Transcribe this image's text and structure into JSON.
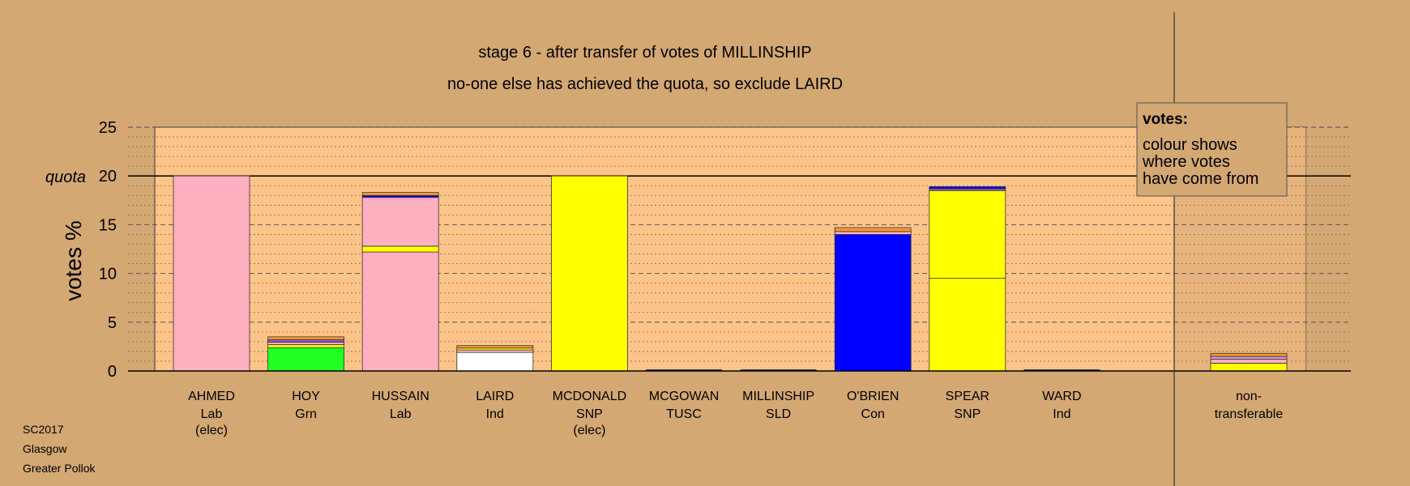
{
  "chart_data": {
    "type": "bar",
    "title": "stage 6 - after transfer of votes of MILLINSHIP",
    "subtitle": "no-one else has achieved the quota, so exclude LAIRD",
    "ylabel": "votes %",
    "ylim": [
      0,
      25
    ],
    "yticks": [
      {
        "value": 0,
        "label": "0"
      },
      {
        "value": 5,
        "label": "5"
      },
      {
        "value": 10,
        "label": "10"
      },
      {
        "value": 15,
        "label": "15"
      },
      {
        "value": 20,
        "label": "20"
      },
      {
        "value": 25,
        "label": "25"
      }
    ],
    "quota": 20,
    "quota_label": "quota",
    "grid": true,
    "legend": {
      "title": "votes:",
      "lines": [
        "colour shows",
        "where votes",
        "have come from"
      ],
      "placement": "top-right"
    },
    "candidates": [
      {
        "name": "AHMED",
        "party": "Lab",
        "note": "(elec)",
        "segments": [
          {
            "value": 20.0,
            "color": "#ffb0c0"
          }
        ]
      },
      {
        "name": "HOY",
        "party": "Grn",
        "note": "",
        "segments": [
          {
            "value": 2.4,
            "color": "#22ff22"
          },
          {
            "value": 0.3,
            "color": "#ffff00"
          },
          {
            "value": 0.25,
            "color": "#ffb0c0"
          },
          {
            "value": 0.25,
            "color": "#9955dd"
          },
          {
            "value": 0.3,
            "color": "#ff9933"
          }
        ]
      },
      {
        "name": "HUSSAIN",
        "party": "Lab",
        "note": "",
        "segments": [
          {
            "value": 12.2,
            "color": "#ffb0c0"
          },
          {
            "value": 0.6,
            "color": "#ffff00"
          },
          {
            "value": 5.0,
            "color": "#ffb0c0"
          },
          {
            "value": 0.2,
            "color": "#0000ff"
          },
          {
            "value": 0.3,
            "color": "#ff9933"
          }
        ]
      },
      {
        "name": "LAIRD",
        "party": "Ind",
        "note": "",
        "segments": [
          {
            "value": 1.9,
            "color": "#ffffff"
          },
          {
            "value": 0.25,
            "color": "#ffb0c0"
          },
          {
            "value": 0.2,
            "color": "#ffff00"
          },
          {
            "value": 0.25,
            "color": "#ff9933"
          }
        ]
      },
      {
        "name": "MCDONALD",
        "party": "SNP",
        "note": "(elec)",
        "segments": [
          {
            "value": 20.0,
            "color": "#ffff00"
          }
        ]
      },
      {
        "name": "MCGOWAN",
        "party": "TUSC",
        "note": "",
        "segments": []
      },
      {
        "name": "MILLINSHIP",
        "party": "SLD",
        "note": "",
        "segments": []
      },
      {
        "name": "O'BRIEN",
        "party": "Con",
        "note": "",
        "segments": [
          {
            "value": 14.0,
            "color": "#0000ff"
          },
          {
            "value": 0.3,
            "color": "#ffb0c0"
          },
          {
            "value": 0.4,
            "color": "#ff9933"
          }
        ]
      },
      {
        "name": "SPEAR",
        "party": "SNP",
        "note": "",
        "segments": [
          {
            "value": 9.5,
            "color": "#ffff00"
          },
          {
            "value": 9.0,
            "color": "#ffff00"
          },
          {
            "value": 0.2,
            "color": "#9955dd"
          },
          {
            "value": 0.2,
            "color": "#0000ff"
          }
        ]
      },
      {
        "name": "WARD",
        "party": "Ind",
        "note": "",
        "segments": []
      }
    ],
    "nontransferable": {
      "label_line1": "non-",
      "label_line2": "transferable",
      "segments": [
        {
          "value": 0.8,
          "color": "#ffff00"
        },
        {
          "value": 0.4,
          "color": "#ffb0c0"
        },
        {
          "value": 0.3,
          "color": "#cc99cc"
        },
        {
          "value": 0.3,
          "color": "#ff9933"
        }
      ]
    }
  },
  "footer": {
    "line1": "SC2017",
    "line2": "Glasgow",
    "line3": "Greater Pollok"
  },
  "colors": {
    "background": "#d4a873",
    "plot_area": "#fdc489",
    "right_panel": "#c99f6b"
  }
}
